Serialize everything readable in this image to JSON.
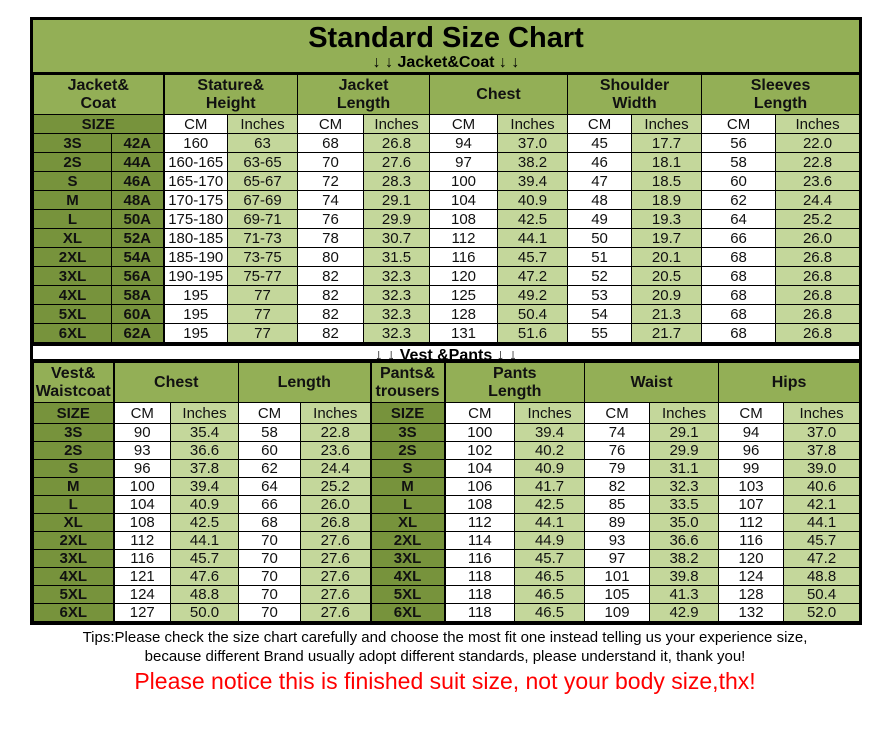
{
  "title": "Standard Size Chart",
  "sections": {
    "jacket_label": "↓ ↓  Jacket&Coat ↓ ↓",
    "vest_label": "↓ ↓  Vest &Pants ↓ ↓"
  },
  "colors": {
    "header_green": "#93AF56",
    "dark_green": "#77933C",
    "light_green": "#C4D79B",
    "band_white": "#FFFFFF",
    "notice_red": "#FF0000"
  },
  "tables": {
    "jacket": {
      "groups": [
        {
          "label": "Jacket&\nCoat",
          "span": 2,
          "type": "gszend"
        },
        {
          "label": "Stature&\nHeight",
          "span": 2,
          "type": "g"
        },
        {
          "label": "Jacket\nLength",
          "span": 2,
          "type": "g"
        },
        {
          "label": "Chest",
          "span": 2,
          "type": "g"
        },
        {
          "label": "Shoulder\nWidth",
          "span": 2,
          "type": "g"
        },
        {
          "label": "Sleeves\nLength",
          "span": 2,
          "type": "g"
        }
      ],
      "units": [
        {
          "label": "SIZE",
          "span": 2,
          "type": "szend"
        },
        {
          "label": "CM",
          "type": "cm"
        },
        {
          "label": "Inches",
          "type": "in"
        },
        {
          "label": "CM",
          "type": "cm"
        },
        {
          "label": "Inches",
          "type": "in"
        },
        {
          "label": "CM",
          "type": "cm"
        },
        {
          "label": "Inches",
          "type": "in"
        },
        {
          "label": "CM",
          "type": "cm"
        },
        {
          "label": "Inches",
          "type": "in"
        },
        {
          "label": "CM",
          "type": "cm"
        },
        {
          "label": "Inches",
          "type": "in"
        }
      ],
      "col_types": [
        "sz",
        "szend",
        "cm",
        "in",
        "cm",
        "in",
        "cm",
        "in",
        "cm",
        "in",
        "cm",
        "in"
      ],
      "rows": [
        [
          "3S",
          "42A",
          "160",
          "63",
          "68",
          "26.8",
          "94",
          "37.0",
          "45",
          "17.7",
          "56",
          "22.0"
        ],
        [
          "2S",
          "44A",
          "160-165",
          "63-65",
          "70",
          "27.6",
          "97",
          "38.2",
          "46",
          "18.1",
          "58",
          "22.8"
        ],
        [
          "S",
          "46A",
          "165-170",
          "65-67",
          "72",
          "28.3",
          "100",
          "39.4",
          "47",
          "18.5",
          "60",
          "23.6"
        ],
        [
          "M",
          "48A",
          "170-175",
          "67-69",
          "74",
          "29.1",
          "104",
          "40.9",
          "48",
          "18.9",
          "62",
          "24.4"
        ],
        [
          "L",
          "50A",
          "175-180",
          "69-71",
          "76",
          "29.9",
          "108",
          "42.5",
          "49",
          "19.3",
          "64",
          "25.2"
        ],
        [
          "XL",
          "52A",
          "180-185",
          "71-73",
          "78",
          "30.7",
          "112",
          "44.1",
          "50",
          "19.7",
          "66",
          "26.0"
        ],
        [
          "2XL",
          "54A",
          "185-190",
          "73-75",
          "80",
          "31.5",
          "116",
          "45.7",
          "51",
          "20.1",
          "68",
          "26.8"
        ],
        [
          "3XL",
          "56A",
          "190-195",
          "75-77",
          "82",
          "32.3",
          "120",
          "47.2",
          "52",
          "20.5",
          "68",
          "26.8"
        ],
        [
          "4XL",
          "58A",
          "195",
          "77",
          "82",
          "32.3",
          "125",
          "49.2",
          "53",
          "20.9",
          "68",
          "26.8"
        ],
        [
          "5XL",
          "60A",
          "195",
          "77",
          "82",
          "32.3",
          "128",
          "50.4",
          "54",
          "21.3",
          "68",
          "26.8"
        ],
        [
          "6XL",
          "62A",
          "195",
          "77",
          "82",
          "32.3",
          "131",
          "51.6",
          "55",
          "21.7",
          "68",
          "26.8"
        ]
      ]
    },
    "vest": {
      "groups": [
        {
          "label": "Vest&\nWaistcoat",
          "span": 1,
          "type": "gszend"
        },
        {
          "label": "Chest",
          "span": 2,
          "type": "g"
        },
        {
          "label": "Length",
          "span": 2,
          "type": "g"
        },
        {
          "label": "Pants&\ntrousers",
          "span": 1,
          "type": "gszboth"
        },
        {
          "label": "Pants\nLength",
          "span": 2,
          "type": "g"
        },
        {
          "label": "Waist",
          "span": 2,
          "type": "g"
        },
        {
          "label": "Hips",
          "span": 2,
          "type": "g"
        }
      ],
      "units": [
        {
          "label": "SIZE",
          "type": "szend"
        },
        {
          "label": "CM",
          "type": "cm"
        },
        {
          "label": "Inches",
          "type": "in"
        },
        {
          "label": "CM",
          "type": "cm"
        },
        {
          "label": "Inches",
          "type": "in"
        },
        {
          "label": "SIZE",
          "type": "szboth"
        },
        {
          "label": "CM",
          "type": "cm"
        },
        {
          "label": "Inches",
          "type": "in"
        },
        {
          "label": "CM",
          "type": "cm"
        },
        {
          "label": "Inches",
          "type": "in"
        },
        {
          "label": "CM",
          "type": "cm"
        },
        {
          "label": "Inches",
          "type": "in"
        }
      ],
      "col_types": [
        "szend",
        "cm",
        "in",
        "cm",
        "in",
        "szboth",
        "cm",
        "in",
        "cm",
        "in",
        "cm",
        "in"
      ],
      "rows": [
        [
          "3S",
          "90",
          "35.4",
          "58",
          "22.8",
          "3S",
          "100",
          "39.4",
          "74",
          "29.1",
          "94",
          "37.0"
        ],
        [
          "2S",
          "93",
          "36.6",
          "60",
          "23.6",
          "2S",
          "102",
          "40.2",
          "76",
          "29.9",
          "96",
          "37.8"
        ],
        [
          "S",
          "96",
          "37.8",
          "62",
          "24.4",
          "S",
          "104",
          "40.9",
          "79",
          "31.1",
          "99",
          "39.0"
        ],
        [
          "M",
          "100",
          "39.4",
          "64",
          "25.2",
          "M",
          "106",
          "41.7",
          "82",
          "32.3",
          "103",
          "40.6"
        ],
        [
          "L",
          "104",
          "40.9",
          "66",
          "26.0",
          "L",
          "108",
          "42.5",
          "85",
          "33.5",
          "107",
          "42.1"
        ],
        [
          "XL",
          "108",
          "42.5",
          "68",
          "26.8",
          "XL",
          "112",
          "44.1",
          "89",
          "35.0",
          "112",
          "44.1"
        ],
        [
          "2XL",
          "112",
          "44.1",
          "70",
          "27.6",
          "2XL",
          "114",
          "44.9",
          "93",
          "36.6",
          "116",
          "45.7"
        ],
        [
          "3XL",
          "116",
          "45.7",
          "70",
          "27.6",
          "3XL",
          "116",
          "45.7",
          "97",
          "38.2",
          "120",
          "47.2"
        ],
        [
          "4XL",
          "121",
          "47.6",
          "70",
          "27.6",
          "4XL",
          "118",
          "46.5",
          "101",
          "39.8",
          "124",
          "48.8"
        ],
        [
          "5XL",
          "124",
          "48.8",
          "70",
          "27.6",
          "5XL",
          "118",
          "46.5",
          "105",
          "41.3",
          "128",
          "50.4"
        ],
        [
          "6XL",
          "127",
          "50.0",
          "70",
          "27.6",
          "6XL",
          "118",
          "46.5",
          "109",
          "42.9",
          "132",
          "52.0"
        ]
      ]
    }
  },
  "tips": {
    "line1": "Tips:Please check the size chart carefully and choose the most fit one instead telling us your experience size,",
    "line2": "because different Brand usually adopt different standards, please understand it, thank you!"
  },
  "notice": "Please notice this is finished suit size, not your body size,thx!"
}
